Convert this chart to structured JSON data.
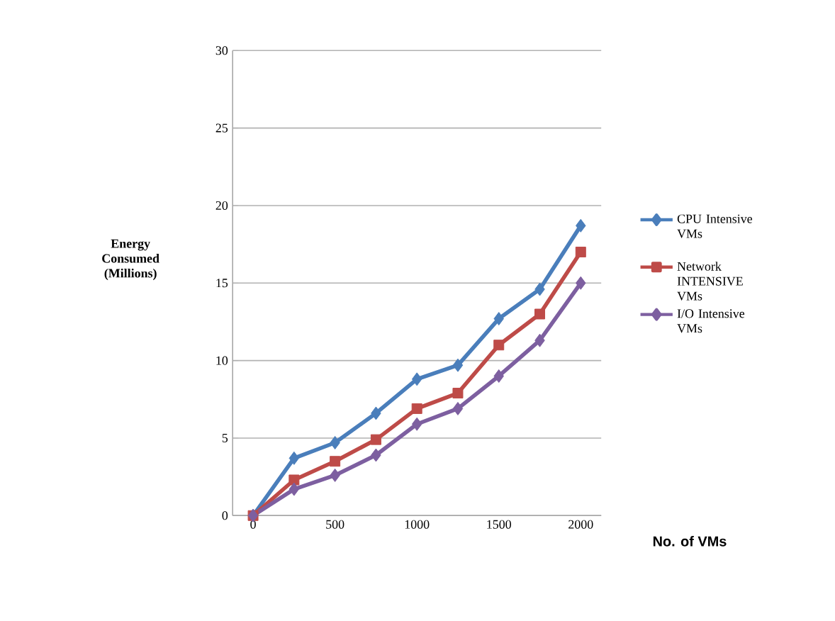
{
  "chart_data": {
    "type": "line",
    "xlabel": "No. of VMs",
    "ylabel": "Energy Consumed (Millions)",
    "x": [
      0,
      250,
      500,
      750,
      1000,
      1250,
      1500,
      1750,
      2000
    ],
    "xlim": [
      -125,
      2125
    ],
    "xticks": [
      0,
      500,
      1000,
      1500,
      2000
    ],
    "ylim": [
      0,
      30
    ],
    "yticks": [
      0,
      5,
      10,
      15,
      20,
      25,
      30
    ],
    "grid": "y",
    "legend": "right",
    "line_style": "solid",
    "series": [
      {
        "name": "CPU Intensive VMs",
        "color": "#4a7ebb",
        "marker": "diamond",
        "values": [
          0,
          3.7,
          4.7,
          6.6,
          8.8,
          9.7,
          12.7,
          14.6,
          18.7
        ]
      },
      {
        "name": "Network INTENSIVE VMs",
        "color": "#be4b48",
        "marker": "square",
        "values": [
          0,
          2.3,
          3.5,
          4.9,
          6.9,
          7.9,
          11.0,
          13.0,
          17.0
        ]
      },
      {
        "name": "I/O Intensive VMs",
        "color": "#7d5fa0",
        "marker": "diamond",
        "values": [
          0,
          1.7,
          2.6,
          3.9,
          5.9,
          6.9,
          9.0,
          11.3,
          15.0
        ]
      }
    ]
  }
}
